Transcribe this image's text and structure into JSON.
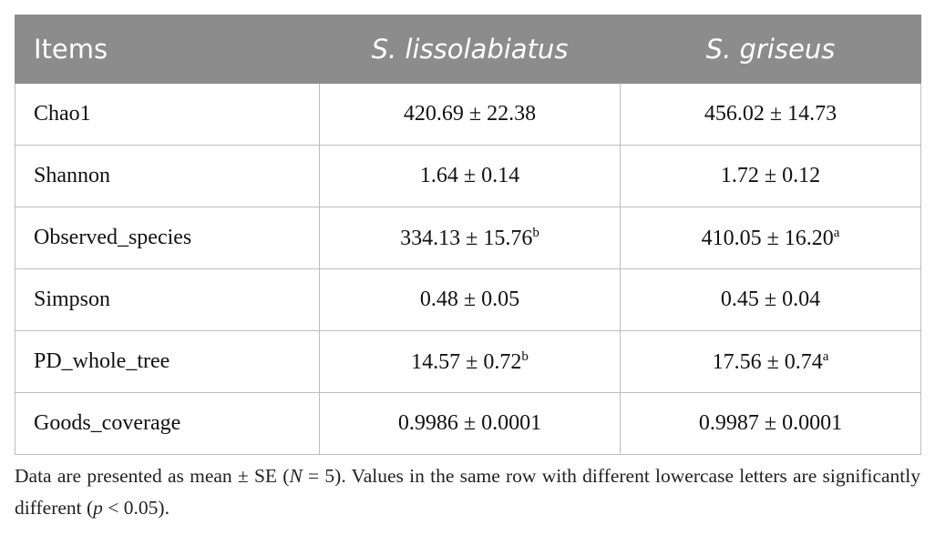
{
  "table": {
    "header": [
      "Items",
      "S. lissolabiatus",
      "S. griseus"
    ],
    "rows": [
      [
        "Chao1",
        {
          "text": "420.69 ± 22.38"
        },
        {
          "text": "456.02 ± 14.73"
        }
      ],
      [
        "Shannon",
        {
          "text": "1.64 ± 0.14"
        },
        {
          "text": "1.72 ± 0.12"
        }
      ],
      [
        "Observed_species",
        {
          "text": "334.13 ± 15.76",
          "sup": "b"
        },
        {
          "text": "410.05 ± 16.20",
          "sup": "a"
        }
      ],
      [
        "Simpson",
        {
          "text": "0.48 ± 0.05"
        },
        {
          "text": "0.45 ± 0.04"
        }
      ],
      [
        "PD_whole_tree",
        {
          "text": "14.57 ± 0.72",
          "sup": "b"
        },
        {
          "text": "17.56 ± 0.74",
          "sup": "a"
        }
      ],
      [
        "Goods_coverage",
        {
          "text": "0.9986 ± 0.0001"
        },
        {
          "text": "0.9987 ± 0.0001"
        }
      ]
    ]
  },
  "footnote": [
    "Data are presented as mean ± SE (",
    "N",
    " = 5). Values in the same row with different lowercase letters are significantly different (",
    "p",
    " < 0.05)."
  ]
}
